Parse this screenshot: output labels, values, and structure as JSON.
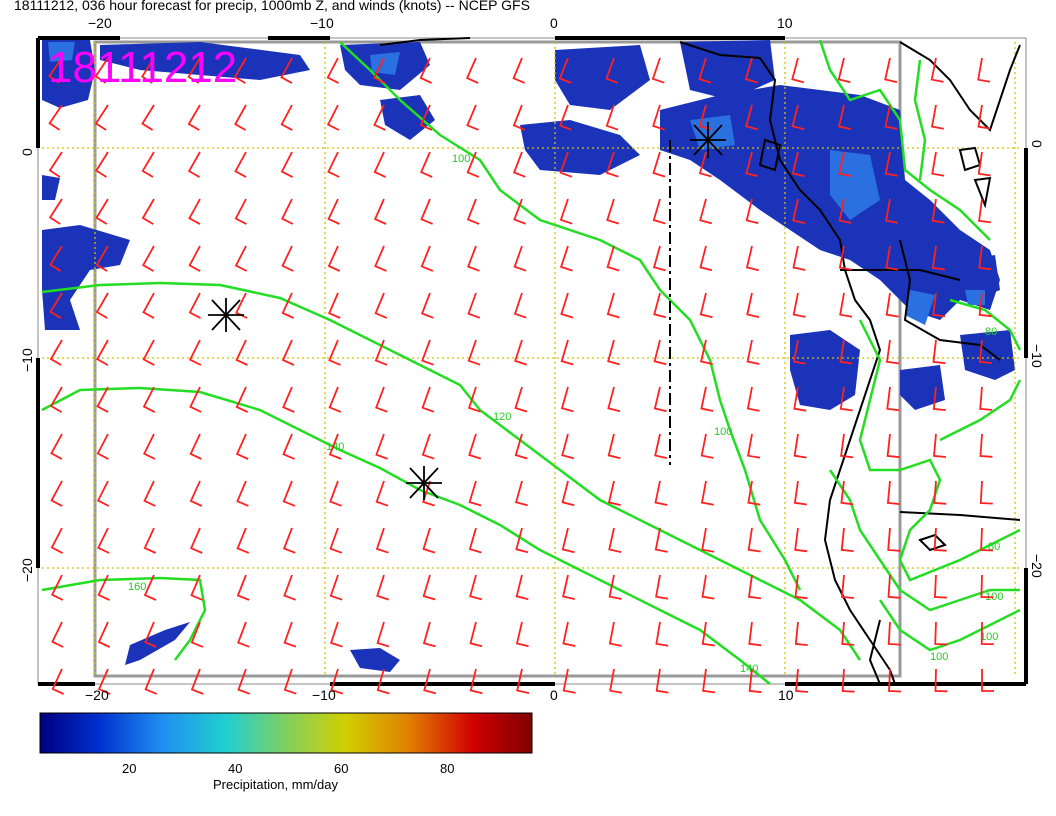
{
  "title": "18111212, 036 hour forecast for precip, 1000mb Z, and winds (knots) -- NCEP GFS",
  "stamp": "18111212",
  "axes": {
    "lon_ticks": [
      "−20",
      "−10",
      "0",
      "10"
    ],
    "lat_ticks": [
      "0",
      "−10",
      "−20"
    ]
  },
  "contour_labels": [
    "100",
    "120",
    "140",
    "160",
    "100",
    "80",
    "100",
    "100",
    "140",
    "80",
    "100"
  ],
  "colorbar": {
    "label": "Precipitation, mm/day",
    "ticks": [
      "20",
      "40",
      "60",
      "80"
    ],
    "colors": [
      "#000080",
      "#0030d0",
      "#2090f0",
      "#20d0d0",
      "#80d060",
      "#d0d000",
      "#e08000",
      "#d00000",
      "#800000"
    ]
  },
  "colors": {
    "wind_barbs": "#ff2020",
    "height_contours": "#22dd22",
    "grid": "#d4c000",
    "coastline": "#000000",
    "precip_low": "#1a33b8"
  },
  "legend_markers": "black asterisks mark low-level cyclone centers",
  "icons": [
    "asterisk-marker"
  ]
}
